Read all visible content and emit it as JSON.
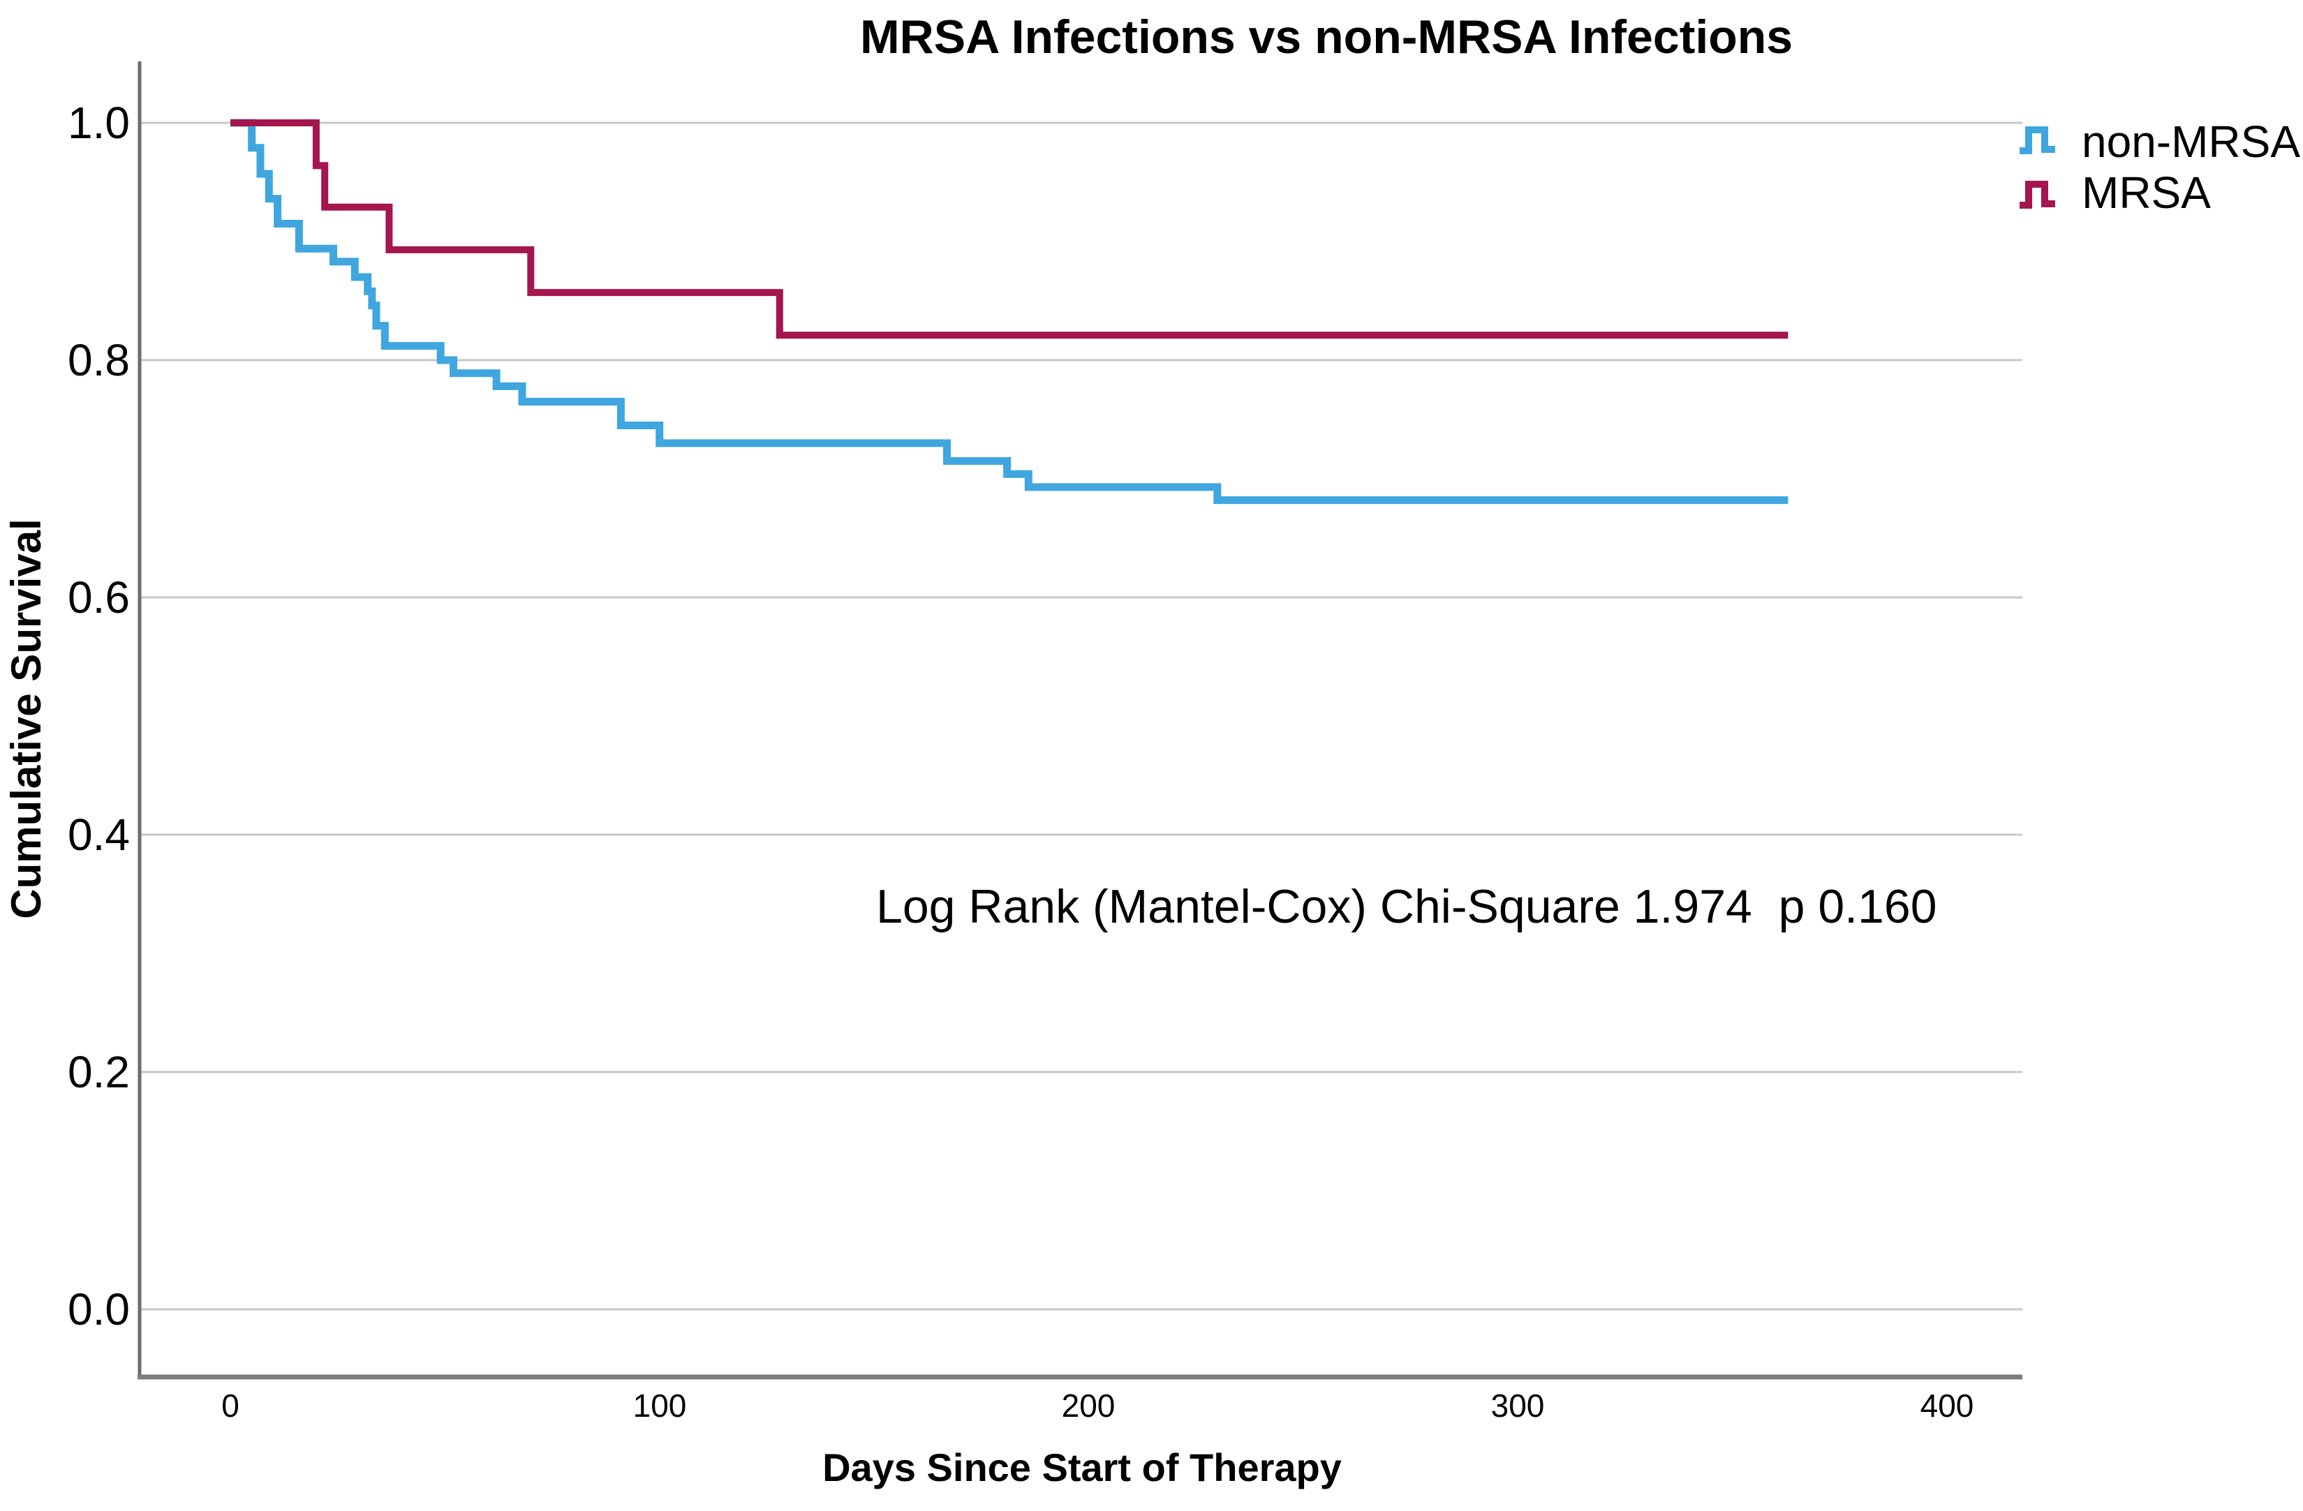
{
  "chart_data": {
    "type": "line",
    "subtype": "kaplan-meier-step",
    "title": "MRSA Infections vs non-MRSA Infections",
    "xlabel": "Days Since Start of Therapy",
    "ylabel": "Cumulative Survival",
    "annotation": "Log Rank (Mantel-Cox) Chi-Square 1.974  p 0.160",
    "grid": "horizontal",
    "legend_position": "top-right",
    "xlim": [
      -21,
      418
    ],
    "ylim": [
      -0.06,
      1.05
    ],
    "xticks": [
      0,
      100,
      200,
      300,
      400
    ],
    "xtick_labels": [
      "0",
      "100",
      "200",
      "300",
      "400"
    ],
    "yticks": [
      1.0,
      0.8,
      0.6,
      0.4,
      0.2,
      0.0
    ],
    "ytick_labels": [
      "1.0",
      "0.8",
      "0.6",
      "0.4",
      "0.2",
      "0.0"
    ],
    "colors": {
      "non_mrsa": "#3FA6E0",
      "mrsa": "#A5164E",
      "grid": "#c8c8c8",
      "axis": "#6e6e6e"
    },
    "series": [
      {
        "name": "non-MRSA",
        "color": "#3FA6E0",
        "end_day": 363,
        "steps": [
          [
            0,
            1.0
          ],
          [
            5,
            0.979
          ],
          [
            7,
            0.957
          ],
          [
            9,
            0.936
          ],
          [
            11,
            0.915
          ],
          [
            16,
            0.894
          ],
          [
            24,
            0.883
          ],
          [
            29,
            0.87
          ],
          [
            32,
            0.858
          ],
          [
            33,
            0.846
          ],
          [
            34,
            0.829
          ],
          [
            36,
            0.812
          ],
          [
            49,
            0.8
          ],
          [
            52,
            0.789
          ],
          [
            62,
            0.778
          ],
          [
            68,
            0.765
          ],
          [
            91,
            0.745
          ],
          [
            100,
            0.73
          ],
          [
            167,
            0.715
          ],
          [
            181,
            0.704
          ],
          [
            186,
            0.693
          ],
          [
            230,
            0.682
          ]
        ]
      },
      {
        "name": "MRSA",
        "color": "#A5164E",
        "end_day": 363,
        "steps": [
          [
            0,
            1.0
          ],
          [
            20,
            0.964
          ],
          [
            22,
            0.929
          ],
          [
            37,
            0.893
          ],
          [
            70,
            0.857
          ],
          [
            128,
            0.821
          ]
        ]
      }
    ]
  }
}
